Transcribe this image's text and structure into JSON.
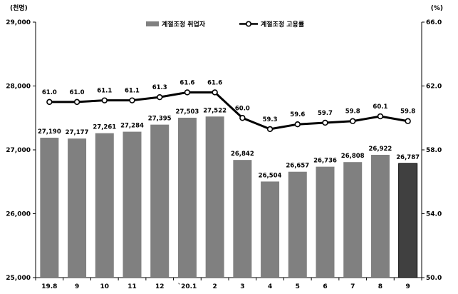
{
  "chart_data": {
    "type": "bar",
    "left_unit": "(천명)",
    "right_unit": "(%)",
    "categories": [
      "19.8",
      "9",
      "10",
      "11",
      "12",
      "`20.1",
      "2",
      "3",
      "4",
      "5",
      "6",
      "7",
      "8",
      "9"
    ],
    "y_left_ticks": [
      "25,000",
      "26,000",
      "27,000",
      "28,000",
      "29,000"
    ],
    "y_right_ticks": [
      "50.0",
      "54.0",
      "58.0",
      "62.0",
      "66.0"
    ],
    "ylim_left": [
      25000,
      29000
    ],
    "ylim_right": [
      50.0,
      66.0
    ],
    "grid": false,
    "legend_position": "top-center",
    "series": [
      {
        "name": "계절조정 취업자",
        "type": "bar",
        "axis": "left",
        "color": "#808080",
        "highlight_color": "#404040",
        "values": [
          27190,
          27177,
          27261,
          27284,
          27395,
          27503,
          27522,
          26842,
          26504,
          26657,
          26736,
          26808,
          26922,
          26787
        ],
        "labels": [
          "27,190",
          "27,177",
          "27,261",
          "27,284",
          "27,395",
          "27,503",
          "27,522",
          "26,842",
          "26,504",
          "26,657",
          "26,736",
          "26,808",
          "26,922",
          "26,787"
        ]
      },
      {
        "name": "계절조정 고용률",
        "type": "line",
        "axis": "right",
        "color": "#000000",
        "values": [
          61.0,
          61.0,
          61.1,
          61.1,
          61.3,
          61.6,
          61.6,
          60.0,
          59.3,
          59.6,
          59.7,
          59.8,
          60.1,
          59.8
        ],
        "labels": [
          "61.0",
          "61.0",
          "61.1",
          "61.1",
          "61.3",
          "61.6",
          "61.6",
          "60.0",
          "59.3",
          "59.6",
          "59.7",
          "59.8",
          "60.1",
          "59.8"
        ]
      }
    ]
  }
}
